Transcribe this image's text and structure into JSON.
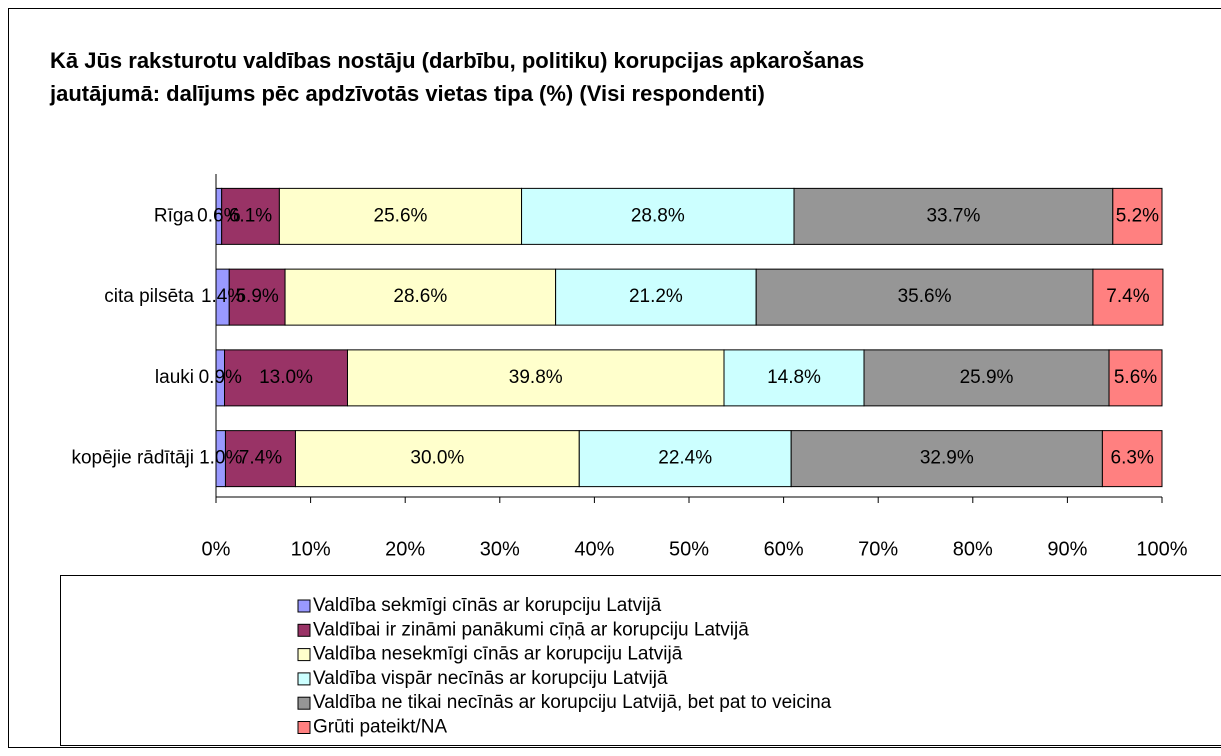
{
  "chart_data": {
    "type": "stacked_bar_horizontal",
    "title": "Kā Jūs raksturotu valdības nostāju (darbību, politiku) korupcijas apkarošanas jautājumā: dalījums pēc apdzīvotās vietas tipa (%) (Visi respondenti)",
    "categories": [
      "Rīga",
      "cita pilsēta",
      "lauki",
      "kopējie rādītāji"
    ],
    "series": [
      {
        "name": "Valdība sekmīgi cīnās ar korupciju Latvijā",
        "color": "#9999ff",
        "values": [
          0.6,
          1.4,
          0.9,
          1.0
        ],
        "value_labels": [
          "0.6%",
          "1.4%",
          "0.9%",
          "1.0%"
        ]
      },
      {
        "name": "Valdībai ir zināmi panākumi cīņā ar korupciju Latvijā",
        "color": "#993366",
        "values": [
          6.1,
          5.9,
          13.0,
          7.4
        ],
        "value_labels": [
          "6.1%",
          "5.9%",
          "13.0%",
          "7.4%"
        ]
      },
      {
        "name": "Valdība nesekmīgi cīnās ar korupciju Latvijā",
        "color": "#ffffcc",
        "values": [
          25.6,
          28.6,
          39.8,
          30.0
        ],
        "value_labels": [
          "25.6%",
          "28.6%",
          "39.8%",
          "30.0%"
        ]
      },
      {
        "name": "Valdība vispār necīnās ar korupciju Latvijā",
        "color": "#ccffff",
        "values": [
          28.8,
          21.2,
          14.8,
          22.4
        ],
        "value_labels": [
          "28.8%",
          "21.2%",
          "14.8%",
          "22.4%"
        ]
      },
      {
        "name": "Valdība ne tikai necīnās ar korupciju Latvijā, bet pat to veicina",
        "color": "#969696",
        "values": [
          33.7,
          35.6,
          25.9,
          32.9
        ],
        "value_labels": [
          "33.7%",
          "35.6%",
          "25.9%",
          "32.9%"
        ]
      },
      {
        "name": "Grūti pateikt/NA",
        "color": "#ff8080",
        "values": [
          5.2,
          7.4,
          5.6,
          6.3
        ],
        "value_labels": [
          "5.2%",
          "7.4%",
          "5.6%",
          "6.3%"
        ]
      }
    ],
    "xlim": [
      0,
      100
    ],
    "xticks": [
      {
        "value": 0,
        "label": "0%"
      },
      {
        "value": 10,
        "label": "10%"
      },
      {
        "value": 20,
        "label": "20%"
      },
      {
        "value": 30,
        "label": "30%"
      },
      {
        "value": 40,
        "label": "40%"
      },
      {
        "value": 50,
        "label": "50%"
      },
      {
        "value": 60,
        "label": "60%"
      },
      {
        "value": 70,
        "label": "70%"
      },
      {
        "value": 80,
        "label": "80%"
      },
      {
        "value": 90,
        "label": "90%"
      },
      {
        "value": 100,
        "label": "100%"
      }
    ],
    "grid": false
  }
}
